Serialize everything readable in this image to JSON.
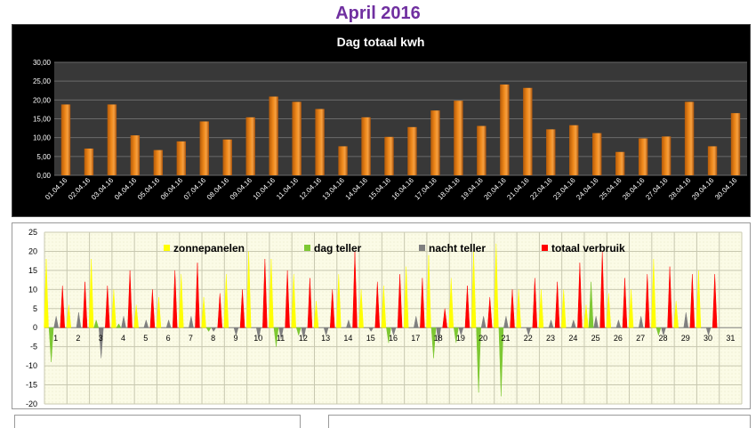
{
  "page": {
    "title": "April 2016"
  },
  "chart_data": [
    {
      "type": "bar",
      "title": "Dag totaal kwh",
      "categories": [
        "01.04.16",
        "02.04.16",
        "03.04.16",
        "04.04.16",
        "05.04.16",
        "06.04.16",
        "07.04.16",
        "08.04.16",
        "09.04.16",
        "10.04.16",
        "11.04.16",
        "12.04.16",
        "13.04.16",
        "14.04.16",
        "15.04.16",
        "16.04.16",
        "17.04.16",
        "18.04.16",
        "19.04.16",
        "20.04.16",
        "21.04.16",
        "22.04.16",
        "23.04.16",
        "24.04.16",
        "25.04.16",
        "26.04.16",
        "27.04.16",
        "28.04.16",
        "29.04.16",
        "30.04.16"
      ],
      "values": [
        18.8,
        7.1,
        18.8,
        10.6,
        6.7,
        9.0,
        14.3,
        9.5,
        15.4,
        20.9,
        19.5,
        17.6,
        7.7,
        15.4,
        10.2,
        12.8,
        17.2,
        19.8,
        13.1,
        24.1,
        23.2,
        12.2,
        13.3,
        11.2,
        6.2,
        9.8,
        10.3,
        19.5,
        7.7,
        16.5
      ],
      "ylim": [
        0,
        30
      ],
      "yticks": [
        "0,00",
        "5,00",
        "10,00",
        "15,00",
        "20,00",
        "25,00",
        "30,00"
      ],
      "grid": true,
      "colors": {
        "bar": "#f08a1c",
        "background": "#000000",
        "plot": "#383838"
      }
    },
    {
      "type": "bar",
      "categories": [
        "1",
        "2",
        "3",
        "4",
        "5",
        "6",
        "7",
        "8",
        "9",
        "10",
        "11",
        "12",
        "13",
        "14",
        "15",
        "16",
        "17",
        "18",
        "19",
        "20",
        "21",
        "22",
        "23",
        "24",
        "25",
        "26",
        "27",
        "28",
        "29",
        "30",
        "31"
      ],
      "legend_position": "top",
      "ylim": [
        -20,
        25
      ],
      "yticks": [
        "25",
        "20",
        "15",
        "10",
        "5",
        "0",
        "-5",
        "-10",
        "-15",
        "-20"
      ],
      "grid": true,
      "series": [
        {
          "name": "zonnepanelen",
          "color": "#ffff00",
          "values": [
            18,
            6,
            18,
            10,
            6,
            8,
            14,
            8,
            14,
            20,
            18,
            14,
            7,
            14,
            10,
            11,
            16,
            19,
            13,
            20,
            22,
            10,
            10,
            10,
            6,
            9,
            10,
            18,
            7,
            15,
            0
          ]
        },
        {
          "name": "dag teller",
          "color": "#7dc832",
          "values": [
            -9,
            0,
            2,
            1,
            0,
            0,
            0,
            -1,
            0,
            0,
            -5,
            -2,
            0,
            0,
            0,
            -4,
            0,
            -8,
            -4,
            -17,
            -18,
            0,
            0,
            0,
            12,
            0,
            0,
            -2,
            0,
            0,
            0
          ]
        },
        {
          "name": "nacht teller",
          "color": "#7f7f7f",
          "values": [
            3,
            4,
            -8,
            3,
            2,
            2,
            3,
            -1,
            -2,
            -3,
            -3,
            -3,
            -2,
            2,
            -1,
            -2,
            3,
            -4,
            -2,
            3,
            3,
            -2,
            2,
            2,
            3,
            2,
            3,
            -2,
            4,
            -2,
            0
          ]
        },
        {
          "name": "totaal verbruik",
          "color": "#ff0000",
          "values": [
            11,
            12,
            11,
            15,
            10,
            15,
            17,
            9,
            10,
            18,
            15,
            13,
            10,
            20,
            12,
            14,
            13,
            5,
            11,
            8,
            10,
            13,
            12,
            17,
            20,
            13,
            14,
            16,
            14,
            14,
            0
          ]
        }
      ]
    }
  ]
}
